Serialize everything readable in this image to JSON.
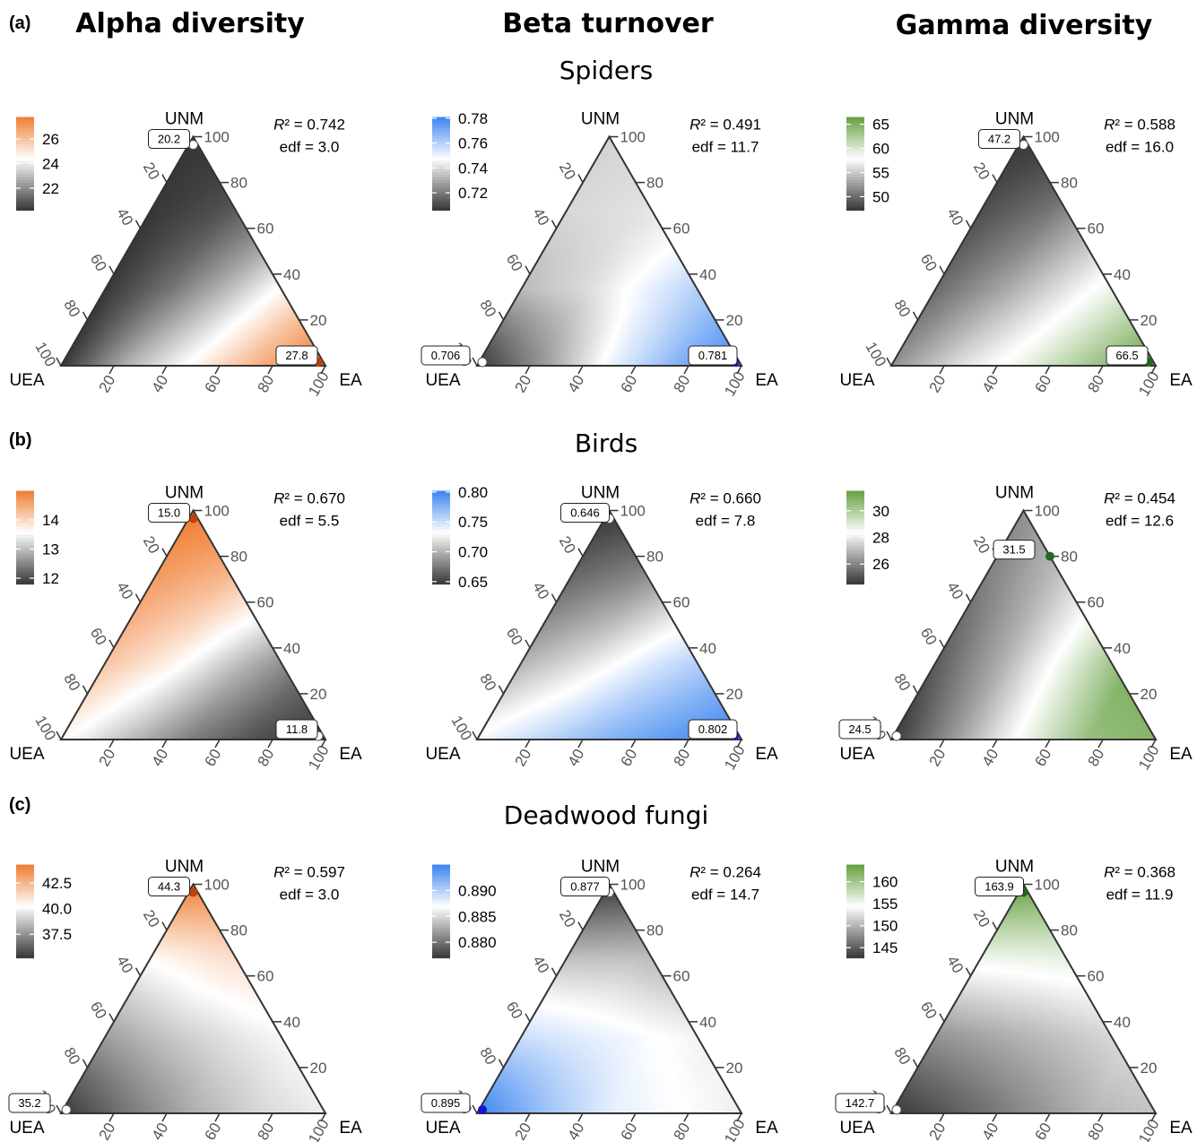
{
  "figure": {
    "column_titles": [
      "Alpha diversity",
      "Beta turnover",
      "Gamma diversity"
    ],
    "axis_ticks": [
      "20",
      "40",
      "60",
      "80",
      "100"
    ],
    "colors": {
      "alpha": "#f07c30",
      "beta": "#3a84f0",
      "gamma": "#64a040"
    }
  },
  "chart_data": [
    {
      "type": "heatmap",
      "row": "Spiders",
      "panel": "(a)",
      "metric": "alpha",
      "vertex_labels": {
        "top": "UNM",
        "left": "UEA",
        "right": "EA"
      },
      "r2": "0.742",
      "edf": "3.0",
      "legend_ticks": [
        {
          "v": 26,
          "label": "26"
        },
        {
          "v": 24,
          "label": "24"
        },
        {
          "v": 22,
          "label": "22"
        }
      ],
      "range": [
        20.2,
        27.8
      ],
      "field": [
        [
          20.2,
          22.8,
          24.6,
          26.5,
          27.8
        ],
        [
          20.2,
          21.5,
          23.2,
          25.2,
          27.2
        ],
        [
          20.2,
          20.7,
          21.8,
          24.0,
          26.8
        ],
        [
          20.2,
          20.3,
          20.9,
          22.6,
          26.2
        ]
      ],
      "extremes": [
        {
          "vertex": "top",
          "value": "20.2",
          "color": "white"
        },
        {
          "vertex": "right",
          "value": "27.8",
          "color": "high"
        }
      ]
    },
    {
      "type": "heatmap",
      "row": "Spiders",
      "panel": "",
      "metric": "beta",
      "vertex_labels": {
        "top": "UNM",
        "left": "UEA",
        "right": "EA"
      },
      "r2": "0.491",
      "edf": "11.7",
      "legend_ticks": [
        {
          "v": 0.78,
          "label": "0.78"
        },
        {
          "v": 0.76,
          "label": "0.76"
        },
        {
          "v": 0.74,
          "label": "0.74"
        },
        {
          "v": 0.72,
          "label": "0.72"
        }
      ],
      "range": [
        0.706,
        0.781
      ],
      "field": [
        [
          0.706,
          0.726,
          0.75,
          0.768,
          0.781
        ],
        [
          0.733,
          0.74,
          0.752,
          0.764,
          0.776
        ],
        [
          0.739,
          0.741,
          0.745,
          0.756,
          0.77
        ],
        [
          0.738,
          0.74,
          0.741,
          0.748,
          0.762
        ]
      ],
      "extremes": [
        {
          "vertex": "left",
          "value": "0.706",
          "color": "white"
        },
        {
          "vertex": "right",
          "value": "0.781",
          "color": "high"
        }
      ]
    },
    {
      "type": "heatmap",
      "row": "Spiders",
      "panel": "",
      "metric": "gamma",
      "vertex_labels": {
        "top": "UNM",
        "left": "UEA",
        "right": "EA"
      },
      "r2": "0.588",
      "edf": "16.0",
      "legend_ticks": [
        {
          "v": 65,
          "label": "65"
        },
        {
          "v": 60,
          "label": "60"
        },
        {
          "v": 55,
          "label": "55"
        },
        {
          "v": 50,
          "label": "50"
        }
      ],
      "range": [
        47.2,
        66.5
      ],
      "field": [
        [
          52,
          56,
          59,
          63,
          66.5
        ],
        [
          50,
          53,
          56.5,
          60,
          64
        ],
        [
          48.5,
          50.5,
          54,
          58,
          61
        ],
        [
          47.2,
          47.8,
          50,
          54,
          58
        ]
      ],
      "extremes": [
        {
          "vertex": "top",
          "value": "47.2",
          "color": "white"
        },
        {
          "vertex": "right",
          "value": "66.5",
          "color": "high"
        }
      ]
    },
    {
      "type": "heatmap",
      "row": "Birds",
      "panel": "(b)",
      "metric": "alpha",
      "vertex_labels": {
        "top": "UNM",
        "left": "UEA",
        "right": "EA"
      },
      "r2": "0.670",
      "edf": "5.5",
      "legend_ticks": [
        {
          "v": 14,
          "label": "14"
        },
        {
          "v": 13,
          "label": "13"
        },
        {
          "v": 12,
          "label": "12"
        }
      ],
      "range": [
        11.8,
        15.0
      ],
      "field": [
        [
          13.6,
          13.0,
          12.4,
          12.0,
          11.8
        ],
        [
          14.2,
          13.7,
          13.0,
          12.4,
          12.0
        ],
        [
          14.6,
          14.3,
          13.8,
          13.1,
          12.5
        ],
        [
          15.0,
          14.9,
          14.6,
          14.1,
          13.4
        ]
      ],
      "extremes": [
        {
          "vertex": "top",
          "value": "15.0",
          "color": "high"
        },
        {
          "vertex": "right",
          "value": "11.8",
          "color": "white"
        }
      ]
    },
    {
      "type": "heatmap",
      "row": "Birds",
      "panel": "",
      "metric": "beta",
      "vertex_labels": {
        "top": "UNM",
        "left": "UEA",
        "right": "EA"
      },
      "r2": "0.660",
      "edf": "7.8",
      "legend_ticks": [
        {
          "v": 0.8,
          "label": "0.80"
        },
        {
          "v": 0.75,
          "label": "0.75"
        },
        {
          "v": 0.7,
          "label": "0.70"
        },
        {
          "v": 0.65,
          "label": "0.65"
        }
      ],
      "range": [
        0.646,
        0.802
      ],
      "field": [
        [
          0.735,
          0.755,
          0.775,
          0.79,
          0.802
        ],
        [
          0.7,
          0.72,
          0.745,
          0.765,
          0.785
        ],
        [
          0.67,
          0.685,
          0.71,
          0.735,
          0.76
        ],
        [
          0.646,
          0.652,
          0.672,
          0.7,
          0.73
        ]
      ],
      "extremes": [
        {
          "vertex": "top",
          "value": "0.646",
          "color": "white"
        },
        {
          "vertex": "right",
          "value": "0.802",
          "color": "high"
        }
      ]
    },
    {
      "type": "heatmap",
      "row": "Birds",
      "panel": "",
      "metric": "gamma",
      "vertex_labels": {
        "top": "UNM",
        "left": "UEA",
        "right": "EA"
      },
      "r2": "0.454",
      "edf": "12.6",
      "legend_ticks": [
        {
          "v": 30,
          "label": "30"
        },
        {
          "v": 28,
          "label": "28"
        },
        {
          "v": 26,
          "label": "26"
        }
      ],
      "range": [
        24.5,
        31.5
      ],
      "field": [
        [
          24.5,
          26.5,
          28.6,
          30.5,
          30.8
        ],
        [
          25.2,
          26.8,
          28.8,
          31.0,
          31.2
        ],
        [
          25.8,
          27.0,
          28.5,
          30.0,
          30.5
        ],
        [
          26.2,
          27.2,
          28.2,
          28.8,
          29.0
        ]
      ],
      "extremes": [
        {
          "vertex": "left",
          "value": "24.5",
          "color": "white"
        },
        {
          "vertex": "edge",
          "a": 0.2,
          "b": 0.8,
          "value": "31.5",
          "color": "high"
        }
      ]
    },
    {
      "type": "heatmap",
      "row": "Deadwood fungi",
      "panel": "(c)",
      "metric": "alpha",
      "vertex_labels": {
        "top": "UNM",
        "left": "UEA",
        "right": "EA"
      },
      "r2": "0.597",
      "edf": "3.0",
      "legend_ticks": [
        {
          "v": 42.5,
          "label": "42.5"
        },
        {
          "v": 40.0,
          "label": "40.0"
        },
        {
          "v": 37.5,
          "label": "37.5"
        }
      ],
      "range": [
        35.2,
        44.3
      ],
      "field": [
        [
          35.2,
          36.8,
          38.2,
          39.2,
          39.8
        ],
        [
          37.8,
          38.8,
          39.6,
          40.2,
          40.6
        ],
        [
          40.2,
          41.0,
          41.5,
          41.8,
          42.0
        ],
        [
          44.3,
          43.8,
          43.4,
          43.1,
          42.9
        ]
      ],
      "extremes": [
        {
          "vertex": "top",
          "value": "44.3",
          "color": "high"
        },
        {
          "vertex": "left",
          "value": "35.2",
          "color": "white"
        }
      ]
    },
    {
      "type": "heatmap",
      "row": "Deadwood fungi",
      "panel": "",
      "metric": "beta",
      "vertex_labels": {
        "top": "UNM",
        "left": "UEA",
        "right": "EA"
      },
      "r2": "0.264",
      "edf": "14.7",
      "legend_ticks": [
        {
          "v": 0.89,
          "label": "0.890"
        },
        {
          "v": 0.885,
          "label": "0.885"
        },
        {
          "v": 0.88,
          "label": "0.880"
        }
      ],
      "range": [
        0.877,
        0.895
      ],
      "field": [
        [
          0.895,
          0.891,
          0.888,
          0.887,
          0.886
        ],
        [
          0.889,
          0.888,
          0.887,
          0.886,
          0.886
        ],
        [
          0.884,
          0.884,
          0.883,
          0.883,
          0.883
        ],
        [
          0.877,
          0.878,
          0.879,
          0.88,
          0.88
        ]
      ],
      "extremes": [
        {
          "vertex": "top",
          "value": "0.877",
          "color": "white"
        },
        {
          "vertex": "left",
          "value": "0.895",
          "color": "high"
        }
      ]
    },
    {
      "type": "heatmap",
      "row": "Deadwood fungi",
      "panel": "",
      "metric": "gamma",
      "vertex_labels": {
        "top": "UNM",
        "left": "UEA",
        "right": "EA"
      },
      "r2": "0.368",
      "edf": "11.9",
      "legend_ticks": [
        {
          "v": 160,
          "label": "160"
        },
        {
          "v": 155,
          "label": "155"
        },
        {
          "v": 150,
          "label": "150"
        },
        {
          "v": 145,
          "label": "145"
        }
      ],
      "range": [
        142.7,
        163.9
      ],
      "field": [
        [
          142.7,
          145,
          147.5,
          150,
          151
        ],
        [
          148,
          149.5,
          151,
          152.5,
          153
        ],
        [
          155,
          155.5,
          156,
          156.5,
          157
        ],
        [
          163.9,
          162.5,
          161.5,
          160.5,
          160
        ]
      ],
      "extremes": [
        {
          "vertex": "top",
          "value": "163.9",
          "color": "high"
        },
        {
          "vertex": "left",
          "value": "142.7",
          "color": "white"
        }
      ]
    }
  ]
}
